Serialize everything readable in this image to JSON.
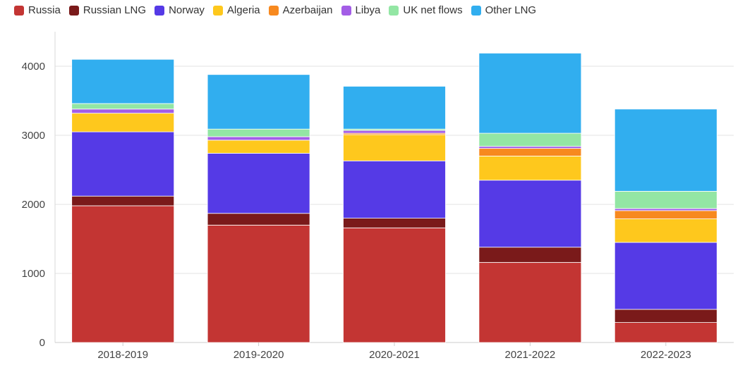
{
  "chart_data": {
    "type": "bar",
    "stacked": true,
    "categories": [
      "2018-2019",
      "2019-2020",
      "2020-2021",
      "2021-2022",
      "2022-2023"
    ],
    "series": [
      {
        "name": "Russia",
        "color": "#c33533",
        "values": [
          1980,
          1700,
          1660,
          1160,
          290
        ]
      },
      {
        "name": "Russian LNG",
        "color": "#7a1a1a",
        "values": [
          140,
          170,
          140,
          220,
          190
        ]
      },
      {
        "name": "Norway",
        "color": "#553ae6",
        "values": [
          930,
          870,
          830,
          970,
          970
        ]
      },
      {
        "name": "Algeria",
        "color": "#fec81d",
        "values": [
          270,
          190,
          380,
          350,
          340
        ]
      },
      {
        "name": "Azerbaijan",
        "color": "#f7891f",
        "values": [
          0,
          0,
          20,
          110,
          120
        ]
      },
      {
        "name": "Libya",
        "color": "#a35de6",
        "values": [
          60,
          50,
          40,
          30,
          30
        ]
      },
      {
        "name": "UK net flows",
        "color": "#93e6a4",
        "values": [
          80,
          110,
          20,
          190,
          250
        ]
      },
      {
        "name": "Other LNG",
        "color": "#31aeef",
        "values": [
          640,
          790,
          620,
          1160,
          1190
        ]
      }
    ],
    "yticks": [
      0,
      1000,
      2000,
      3000,
      4000
    ],
    "ylim": [
      0,
      4500
    ],
    "title": "",
    "xlabel": "",
    "ylabel": "",
    "grid": true,
    "legend_position": "top-left"
  }
}
